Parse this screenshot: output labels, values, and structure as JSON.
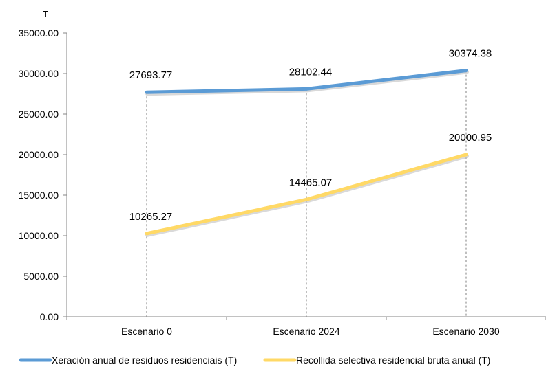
{
  "chart_data": {
    "type": "line",
    "unit_label": "T",
    "categories": [
      "Escenario 0",
      "Escenario 2024",
      "Escenario 2030"
    ],
    "series": [
      {
        "name": "Xeración anual de residuos residenciais (T)",
        "color": "#5b9bd5",
        "values": [
          27693.77,
          28102.44,
          30374.38
        ],
        "labels": [
          "27693.77",
          "28102.44",
          "30374.38"
        ]
      },
      {
        "name": "Recollida selectiva residencial bruta anual (T)",
        "color": "#ffd966",
        "values": [
          10265.27,
          14465.07,
          20000.95
        ],
        "labels": [
          "10265.27",
          "14465.07",
          "20000.95"
        ]
      }
    ],
    "ylim": [
      0,
      35000
    ],
    "yticks": [
      0,
      5000,
      10000,
      15000,
      20000,
      25000,
      30000,
      35000
    ],
    "ytick_labels": [
      "0.00",
      "5000.00",
      "10000.00",
      "15000.00",
      "20000.00",
      "25000.00",
      "30000.00",
      "35000.00"
    ],
    "xlabel": "",
    "ylabel": "",
    "grid": false,
    "drop_lines": true,
    "legend_position": "bottom"
  }
}
